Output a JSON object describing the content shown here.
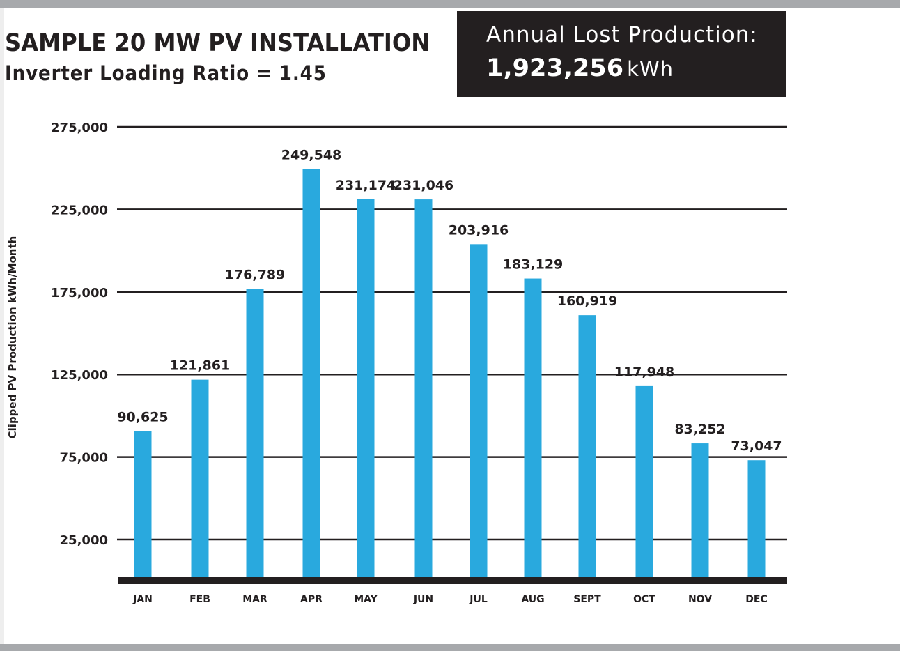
{
  "header": {
    "title": "SAMPLE 20 MW PV INSTALLATION",
    "subtitle": "Inverter Loading Ratio = 1.45"
  },
  "callout": {
    "label": "Annual Lost Production:",
    "value": "1,923,256",
    "unit": "kWh"
  },
  "colors": {
    "bar": "#29a9de",
    "text": "#231f20",
    "callout_bg": "#231f20",
    "rule": "#a7a9ac"
  },
  "chart_data": {
    "type": "bar",
    "title": "SAMPLE 20 MW PV INSTALLATION",
    "subtitle": "Inverter Loading Ratio = 1.45",
    "xlabel": "",
    "ylabel": "Clipped PV Production kWh/Month",
    "categories": [
      "JAN",
      "FEB",
      "MAR",
      "APR",
      "MAY",
      "JUN",
      "JUL",
      "AUG",
      "SEPT",
      "OCT",
      "NOV",
      "DEC"
    ],
    "values": [
      90625,
      121861,
      176789,
      249548,
      231174,
      231046,
      203916,
      183129,
      160919,
      117948,
      83252,
      73047
    ],
    "value_labels": [
      "90,625",
      "121,861",
      "176,789",
      "249,548",
      "231,174",
      "231,046",
      "203,916",
      "183,129",
      "160,919",
      "117,948",
      "83,252",
      "73,047"
    ],
    "yticks": [
      25000,
      75000,
      125000,
      175000,
      225000,
      275000
    ],
    "ytick_labels": [
      "25,000",
      "75,000",
      "125,000",
      "175,000",
      "225,000",
      "275,000"
    ],
    "ylim": [
      0,
      275000
    ],
    "grid": true,
    "legend": "none"
  }
}
